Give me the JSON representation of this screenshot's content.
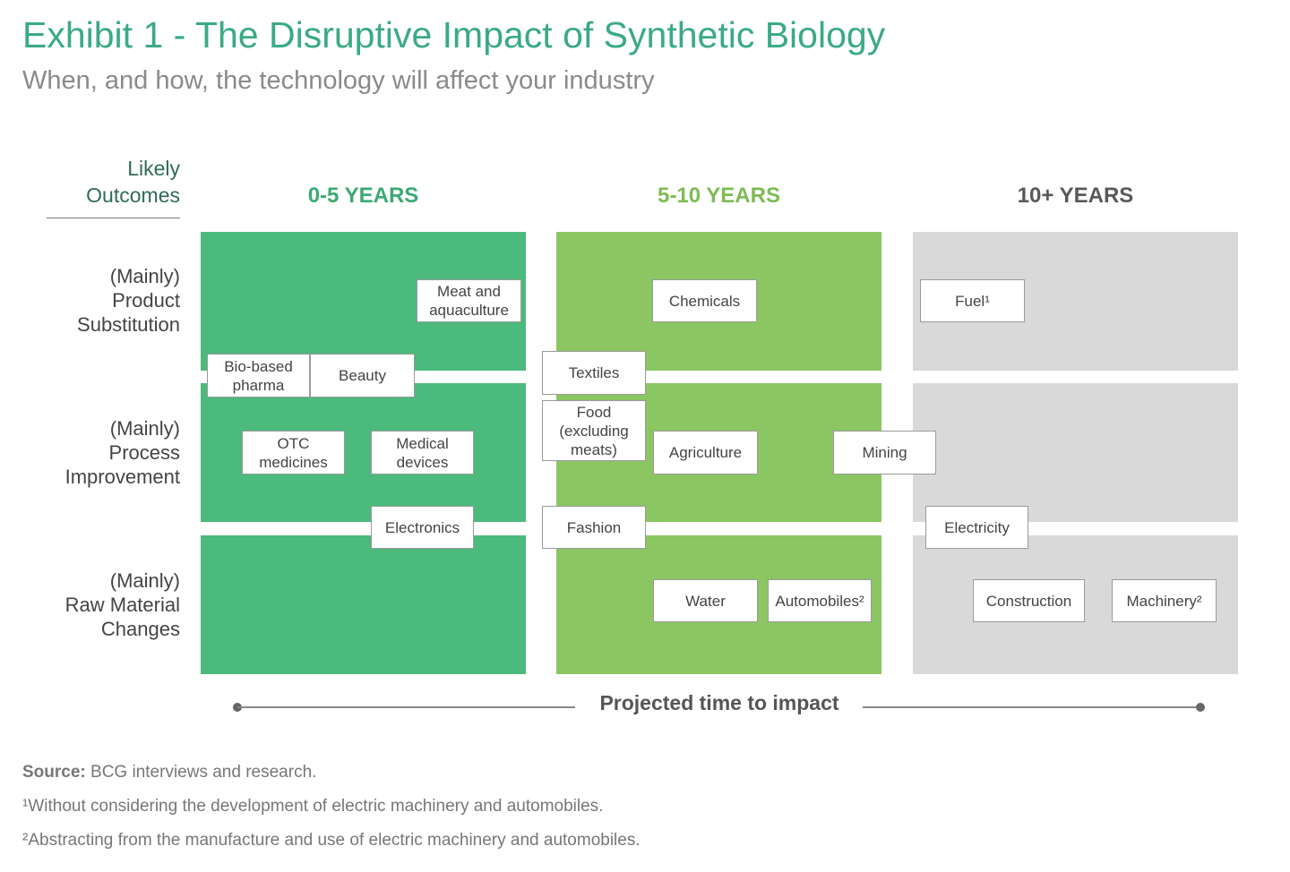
{
  "title": "Exhibit 1 - The Disruptive Impact of Synthetic Biology",
  "subtitle": "When, and how, the technology will affect your industry",
  "outcomes_header": "Likely\nOutcomes",
  "rows": [
    {
      "label": "(Mainly)\nProduct\nSubstitution"
    },
    {
      "label": "(Mainly)\nProcess\nImprovement"
    },
    {
      "label": "(Mainly)\nRaw Material\nChanges"
    }
  ],
  "columns": [
    {
      "label": "0-5 YEARS",
      "color": "#4bba7c",
      "header_color": "#3aaa72"
    },
    {
      "label": "5-10 YEARS",
      "color": "#8bc662",
      "header_color": "#7dbb54"
    },
    {
      "label": "10+ YEARS",
      "color": "#d9d9d9",
      "header_color": "#595959"
    }
  ],
  "industries": {
    "meat": "Meat and\naquaculture",
    "chemicals": "Chemicals",
    "fuel": "Fuel¹",
    "biopharma": "Bio-based\npharma",
    "beauty": "Beauty",
    "textiles": "Textiles",
    "otc": "OTC\nmedicines",
    "medical": "Medical\ndevices",
    "food": "Food\n(excluding\nmeats)",
    "agriculture": "Agriculture",
    "mining": "Mining",
    "electronics": "Electronics",
    "fashion": "Fashion",
    "electricity": "Electricity",
    "water": "Water",
    "automobiles": "Automobiles²",
    "construction": "Construction",
    "machinery": "Machinery²"
  },
  "timeline_label": "Projected time to impact",
  "source_label": "Source:",
  "source_text": " BCG interviews and research.",
  "footnote1": "¹Without considering the development of electric machinery and automobiles.",
  "footnote2": "²Abstracting from the manufacture and use of electric machinery and automobiles."
}
